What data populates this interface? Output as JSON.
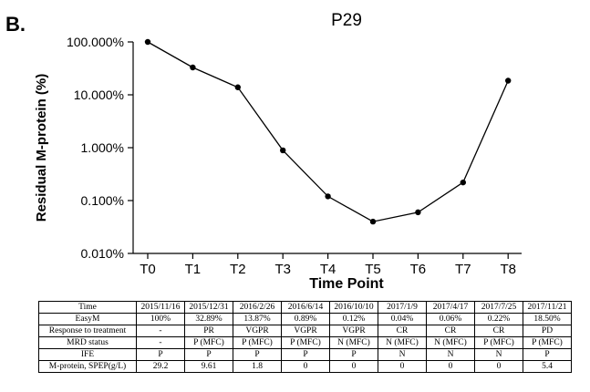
{
  "panel_label": "B.",
  "chart_data": {
    "type": "line",
    "title": "P29",
    "xlabel": "Time Point",
    "ylabel": "Residual M-protein (%)",
    "y_scale": "log",
    "ylim": [
      0.01,
      100
    ],
    "ytick_values": [
      0.01,
      0.1,
      1,
      10,
      100
    ],
    "ytick_labels": [
      "0.010%",
      "0.100%",
      "1.000%",
      "10.000%",
      "100.000%"
    ],
    "categories": [
      "T0",
      "T1",
      "T2",
      "T3",
      "T4",
      "T5",
      "T6",
      "T7",
      "T8"
    ],
    "series": [
      {
        "values": [
          100,
          32.89,
          13.87,
          0.89,
          0.12,
          0.04,
          0.06,
          0.22,
          18.5
        ]
      }
    ],
    "line_color": "#000000"
  },
  "table": {
    "rows": [
      {
        "label": "Time",
        "cells": [
          "2015/11/16",
          "2015/12/31",
          "2016/2/26",
          "2016/6/14",
          "2016/10/10",
          "2017/1/9",
          "2017/4/17",
          "2017/7/25",
          "2017/11/21"
        ]
      },
      {
        "label": "EasyM",
        "cells": [
          "100%",
          "32.89%",
          "13.87%",
          "0.89%",
          "0.12%",
          "0.04%",
          "0.06%",
          "0.22%",
          "18.50%"
        ]
      },
      {
        "label": "Response to treatment",
        "cells": [
          "-",
          "PR",
          "VGPR",
          "VGPR",
          "VGPR",
          "CR",
          "CR",
          "CR",
          "PD"
        ]
      },
      {
        "label": "MRD status",
        "cells": [
          "-",
          "P (MFC)",
          "P (MFC)",
          "P (MFC)",
          "N (MFC)",
          "N (MFC)",
          "N (MFC)",
          "P (MFC)",
          "P (MFC)"
        ]
      },
      {
        "label": "IFE",
        "cells": [
          "P",
          "P",
          "P",
          "P",
          "P",
          "N",
          "N",
          "N",
          "P"
        ]
      },
      {
        "label": "M-protein, SPEP(g/L)",
        "cells": [
          "29.2",
          "9.61",
          "1.8",
          "0",
          "0",
          "0",
          "0",
          "0",
          "5.4"
        ]
      }
    ]
  }
}
